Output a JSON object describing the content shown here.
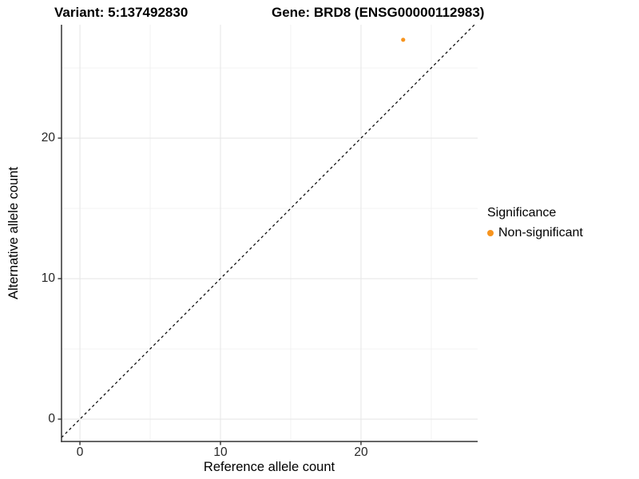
{
  "header": {
    "variant_title": "Variant: 5:137492830",
    "gene_title": "Gene: BRD8 (ENSG00000112983)"
  },
  "chart_data": {
    "type": "scatter",
    "xlabel": "Reference allele count",
    "ylabel": "Alternative allele count",
    "xlim": [
      -1.31,
      28.3
    ],
    "ylim": [
      -1.59,
      28.07
    ],
    "x_ticks": [
      0,
      10,
      20
    ],
    "y_ticks": [
      0,
      10,
      20
    ],
    "grid": {
      "major_x": [
        0,
        10,
        20
      ],
      "minor_x": [
        5,
        15,
        25
      ],
      "major_y": [
        0,
        10,
        20
      ],
      "minor_y": [
        5,
        15,
        25
      ]
    },
    "reference_line": {
      "type": "identity y=x",
      "style": "dashed",
      "color": "#000000"
    },
    "series": [
      {
        "name": "Non-significant",
        "color": "#F7941E",
        "point_radius": 2.6,
        "points": [
          {
            "x": 23,
            "y": 27
          }
        ]
      }
    ],
    "legend": {
      "title": "Significance",
      "position": "right",
      "entries": [
        {
          "label": "Non-significant",
          "color": "#F7941E"
        }
      ]
    },
    "colors": {
      "axis_line": "#333333",
      "grid_major": "#e7e7e7",
      "grid_minor": "#f1f1f1",
      "tick_label": "#262626"
    }
  }
}
